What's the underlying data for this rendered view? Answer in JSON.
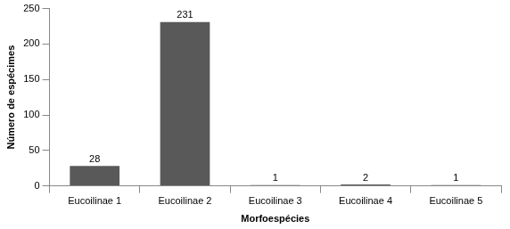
{
  "chart_data": {
    "type": "bar",
    "categories": [
      "Eucoilinae 1",
      "Eucoilinae 2",
      "Eucoilinae 3",
      "Eucoilinae 4",
      "Eucoilinae 5"
    ],
    "values": [
      28,
      231,
      1,
      2,
      1
    ],
    "color": "#595959",
    "x_label": "Morfoespécies",
    "y_label": "Número de espécimes",
    "ylim": [
      0,
      250
    ],
    "yticks": [
      0,
      50,
      100,
      150,
      200,
      250
    ],
    "grid": false,
    "data_labels": true
  }
}
